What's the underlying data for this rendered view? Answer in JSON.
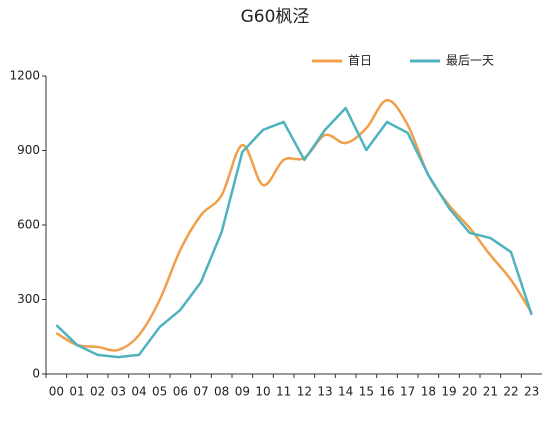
{
  "chart_data": {
    "type": "line",
    "title": "G60枫泾",
    "categories": [
      "00",
      "01",
      "02",
      "03",
      "04",
      "05",
      "06",
      "07",
      "08",
      "09",
      "10",
      "11",
      "12",
      "13",
      "14",
      "15",
      "16",
      "17",
      "18",
      "19",
      "20",
      "21",
      "22",
      "23"
    ],
    "series": [
      {
        "name": "首日",
        "color": "#f0a04b",
        "smooth": true,
        "values": [
          165,
          117,
          109,
          97,
          157,
          298,
          500,
          640,
          720,
          922,
          761,
          862,
          870,
          962,
          930,
          990,
          1103,
          1003,
          801,
          680,
          588,
          479,
          379,
          246
        ]
      },
      {
        "name": "最后一天",
        "color": "#4fb3bf",
        "smooth": false,
        "values": [
          197,
          117,
          77,
          68,
          77,
          189,
          258,
          370,
          572,
          894,
          983,
          1015,
          862,
          983,
          1071,
          902,
          1015,
          971,
          801,
          668,
          568,
          548,
          491,
          238
        ]
      }
    ],
    "ylim": [
      0,
      1200
    ],
    "yticks": [
      0,
      300,
      600,
      900,
      1200
    ],
    "grid": false,
    "legend": "top-right"
  }
}
